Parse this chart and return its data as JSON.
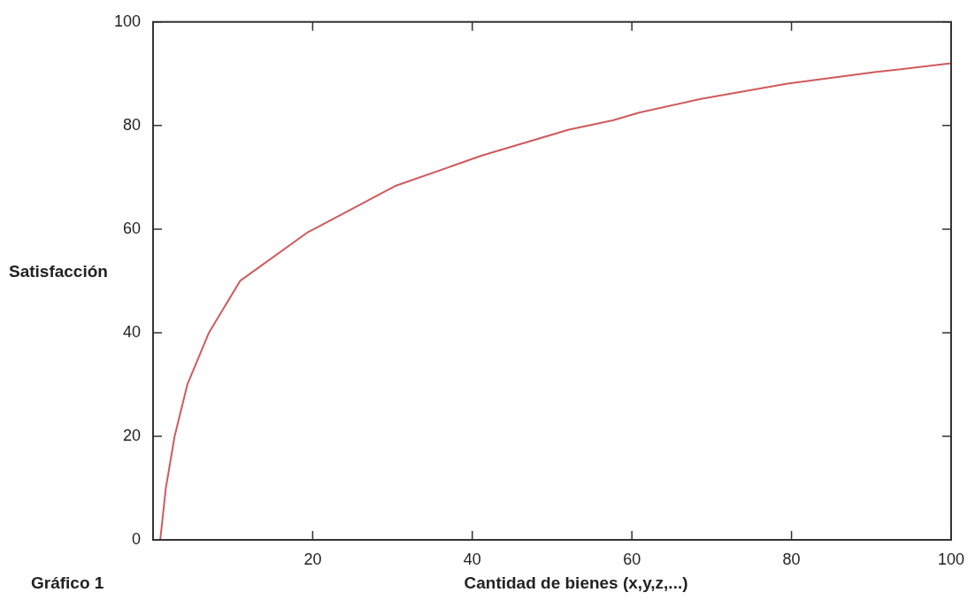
{
  "chart_data": {
    "type": "line",
    "xlabel": "Cantidad de bienes (x,y,z,...)",
    "ylabel": "Satisfacción",
    "annotations": [
      "Gráfico 1"
    ],
    "x": [
      0.9,
      1.6,
      2.7,
      4.3,
      7.0,
      10.9,
      19.3,
      30.3,
      41.2,
      52.1,
      57.6,
      60.9,
      68.5,
      79.5,
      90.4,
      100
    ],
    "series": [
      {
        "color": "#d05a5c",
        "values": [
          0,
          10,
          20,
          30,
          40,
          50,
          59.3,
          68.3,
          74.2,
          79.2,
          81,
          82.5,
          85.1,
          88.1,
          90.3,
          92
        ]
      }
    ],
    "xlim": [
      0,
      100
    ],
    "xticks": [
      20,
      40,
      60,
      80,
      100
    ],
    "ylim": [
      0,
      100
    ],
    "yticks": [
      0,
      20,
      40,
      60,
      80,
      100
    ],
    "grid": false,
    "legend": false,
    "marker": "none",
    "line_style": "solid"
  }
}
